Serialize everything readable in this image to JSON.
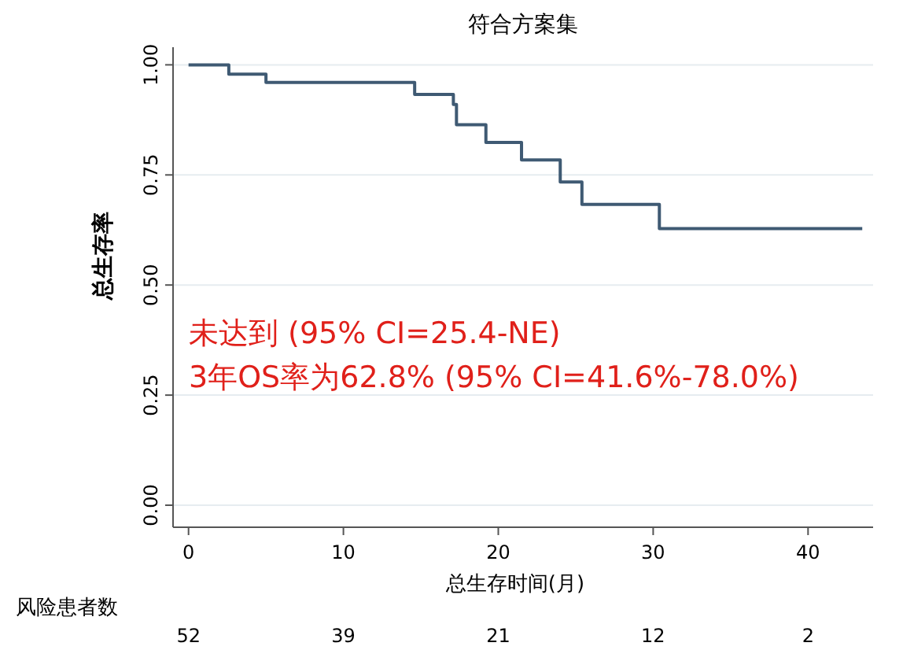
{
  "chart_data": {
    "type": "step",
    "title": "符合方案集",
    "xlabel": "总生存时间(月)",
    "ylabel": "总生存率",
    "x": [
      0,
      2.6,
      5,
      14.6,
      17.1,
      17.3,
      19.2,
      21.5,
      24,
      25.4,
      30.4,
      43.5
    ],
    "series": [
      {
        "color": "#3f5a73",
        "values": [
          1,
          0.979,
          0.96,
          0.933,
          0.91,
          0.864,
          0.824,
          0.784,
          0.734,
          0.683,
          0.628,
          0.628
        ]
      }
    ],
    "xlim": [
      -1,
      44.2
    ],
    "ylim": [
      -0.05,
      1.04
    ],
    "xticks": [
      0,
      10,
      20,
      30,
      40
    ],
    "yticks": [
      {
        "value": 0,
        "label": "0.00"
      },
      {
        "value": 0.25,
        "label": "0.25"
      },
      {
        "value": 0.5,
        "label": "0.50"
      },
      {
        "value": 0.75,
        "label": "0.75"
      },
      {
        "value": 1,
        "label": "1.00"
      }
    ],
    "grid": "y",
    "line_style": "solid",
    "annotations": [
      "风险患者数",
      "未达到 (95% CI=25.4-NE)",
      "3年OS率为62.8% (95% CI=41.6%-78.0%)",
      "52",
      "39",
      "21",
      "12",
      "2"
    ]
  }
}
